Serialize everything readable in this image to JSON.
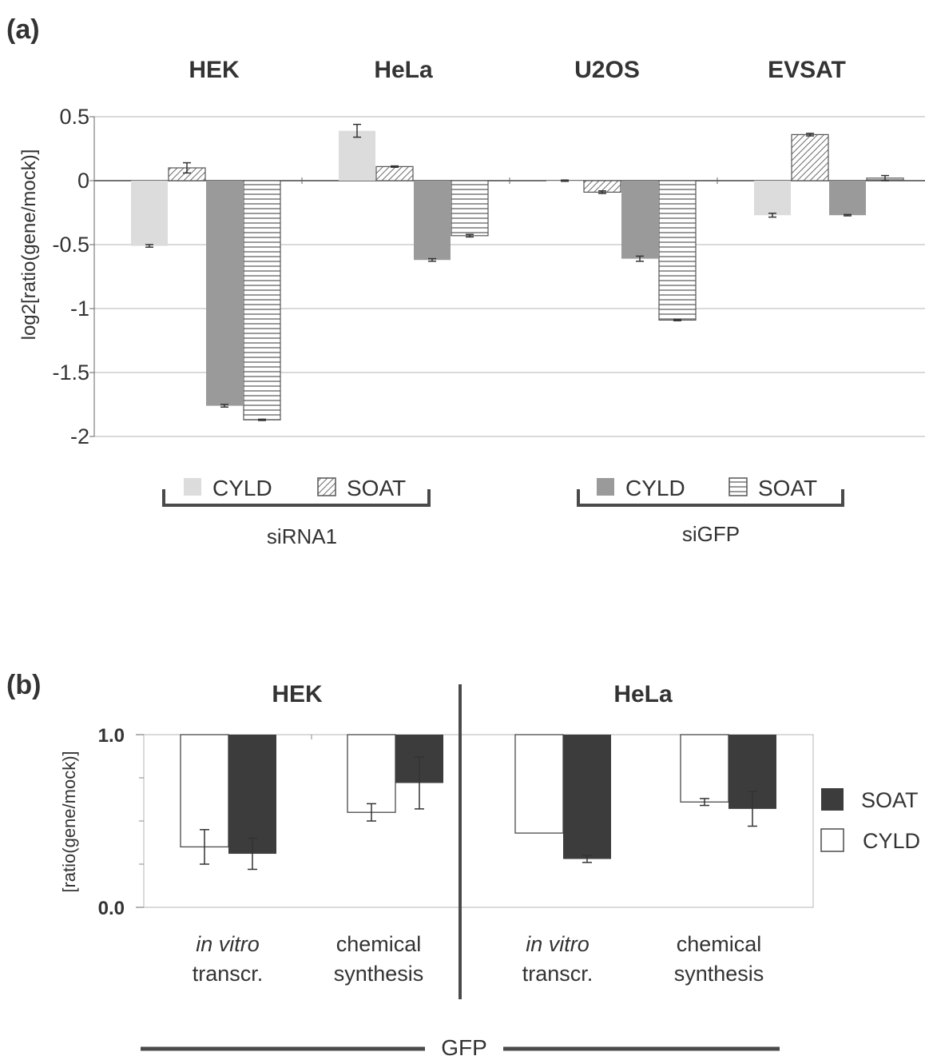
{
  "colors": {
    "cyld_sirna1": "#dcdcdc",
    "cyld_sigfp": "#9a9a9a",
    "soat_b": "#3c3c3c",
    "cyld_b": "#ffffff",
    "line": "#4a4a4a",
    "text": "#333333",
    "grid": "#b4b4b4"
  },
  "chart_data": [
    {
      "panel_label": "(a)",
      "type": "bar",
      "ylabel": "log2[ratio(gene/mock)]",
      "ylim": [
        -2,
        0.5
      ],
      "yticks": [
        "0.5",
        "0",
        "-0.5",
        "-1",
        "-1.5",
        "-2"
      ],
      "yticks_values": [
        0.5,
        0,
        -0.5,
        -1,
        -1.5,
        -2
      ],
      "grid": true,
      "categories": [
        "HEK",
        "HeLa",
        "U2OS",
        "EVSAT"
      ],
      "series": [
        {
          "name": "CYLD",
          "group": "siRNA1",
          "pattern": "solid-light",
          "values": [
            -0.51,
            0.39,
            0.0,
            -0.27
          ],
          "errors": [
            0.01,
            0.05,
            0.005,
            0.015
          ]
        },
        {
          "name": "SOAT",
          "group": "siRNA1",
          "pattern": "diagonal",
          "values": [
            0.1,
            0.11,
            -0.09,
            0.36
          ],
          "errors": [
            0.04,
            0.005,
            0.01,
            0.01
          ]
        },
        {
          "name": "CYLD",
          "group": "siGFP",
          "pattern": "solid-mid",
          "values": [
            -1.76,
            -0.62,
            -0.61,
            -0.27
          ],
          "errors": [
            0.01,
            0.01,
            0.02,
            0.005
          ]
        },
        {
          "name": "SOAT",
          "group": "siGFP",
          "pattern": "horizontal",
          "values": [
            -1.87,
            -0.43,
            -1.09,
            0.02
          ],
          "errors": [
            0.005,
            0.01,
            0.005,
            0.02
          ]
        }
      ],
      "legend_groups": [
        {
          "label": "siRNA1",
          "items": [
            "CYLD",
            "SOAT"
          ]
        },
        {
          "label": "siGFP",
          "items": [
            "CYLD",
            "SOAT"
          ]
        }
      ]
    },
    {
      "panel_label": "(b)",
      "type": "bar",
      "ylabel": "[ratio(gene/mock)]",
      "ylim": [
        0,
        1
      ],
      "yticks": [
        "1.0",
        "0.0"
      ],
      "yticks_values": [
        1.0,
        0.0
      ],
      "panel_titles": [
        "HEK",
        "HeLa"
      ],
      "categories": [
        {
          "line1": "in vitro",
          "line2": "transcr.",
          "italic_line1": true
        },
        {
          "line1": "chemical",
          "line2": "synthesis",
          "italic_line1": false
        },
        {
          "line1": "in vitro",
          "line2": "transcr.",
          "italic_line1": true
        },
        {
          "line1": "chemical",
          "line2": "synthesis",
          "italic_line1": false
        }
      ],
      "series": [
        {
          "name": "CYLD",
          "fill": "white",
          "values": [
            0.35,
            0.55,
            0.43,
            0.61
          ],
          "errors": [
            0.1,
            0.05,
            0.0,
            0.02
          ]
        },
        {
          "name": "SOAT",
          "fill": "dark",
          "values": [
            0.31,
            0.72,
            0.28,
            0.57
          ],
          "errors": [
            0.09,
            0.15,
            0.02,
            0.1
          ]
        }
      ],
      "legend": [
        "SOAT",
        "CYLD"
      ],
      "bottom_label": "GFP"
    }
  ]
}
